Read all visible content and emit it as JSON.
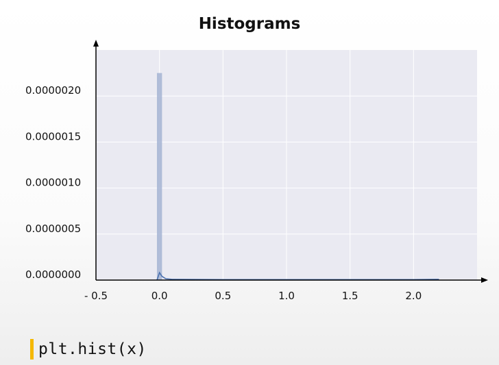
{
  "slide": {
    "title": "Histograms",
    "code": "plt.hist(x)"
  },
  "colors": {
    "plot_background": "#eaeaf2",
    "bar": "#a5b4d4",
    "kde_line": "#4c72b0",
    "code_marker": "#f5b800",
    "grid": "#ffffff"
  },
  "chart_data": {
    "type": "bar",
    "title": "Histograms",
    "xlabel": "",
    "ylabel": "",
    "x_tick_labels": [
      "- 0.5",
      "0.0",
      "0.5",
      "1.0",
      "1.5",
      "2.0"
    ],
    "x_ticks": [
      -0.5,
      0.0,
      0.5,
      1.0,
      1.5,
      2.0
    ],
    "y_tick_labels": [
      "0.0000000",
      "0.0000005",
      "0.0000010",
      "0.0000015",
      "0.0000020"
    ],
    "y_ticks": [
      0,
      5e-07,
      1e-06,
      1.5e-06,
      2e-06
    ],
    "xlim": [
      -0.5,
      2.5
    ],
    "ylim": [
      0,
      2.5e-06
    ],
    "grid": true,
    "bins": [
      {
        "x0": -0.02,
        "x1": 0.02,
        "value": 2.25e-06
      }
    ],
    "kde_line": {
      "x": [
        -0.02,
        0.0,
        0.02,
        0.05,
        0.1,
        0.5,
        1.0,
        1.5,
        2.0,
        2.2
      ],
      "y": [
        0.0,
        8e-08,
        4e-08,
        1.5e-08,
        8e-09,
        5e-09,
        5e-09,
        5e-09,
        5e-09,
        8e-09
      ]
    }
  }
}
